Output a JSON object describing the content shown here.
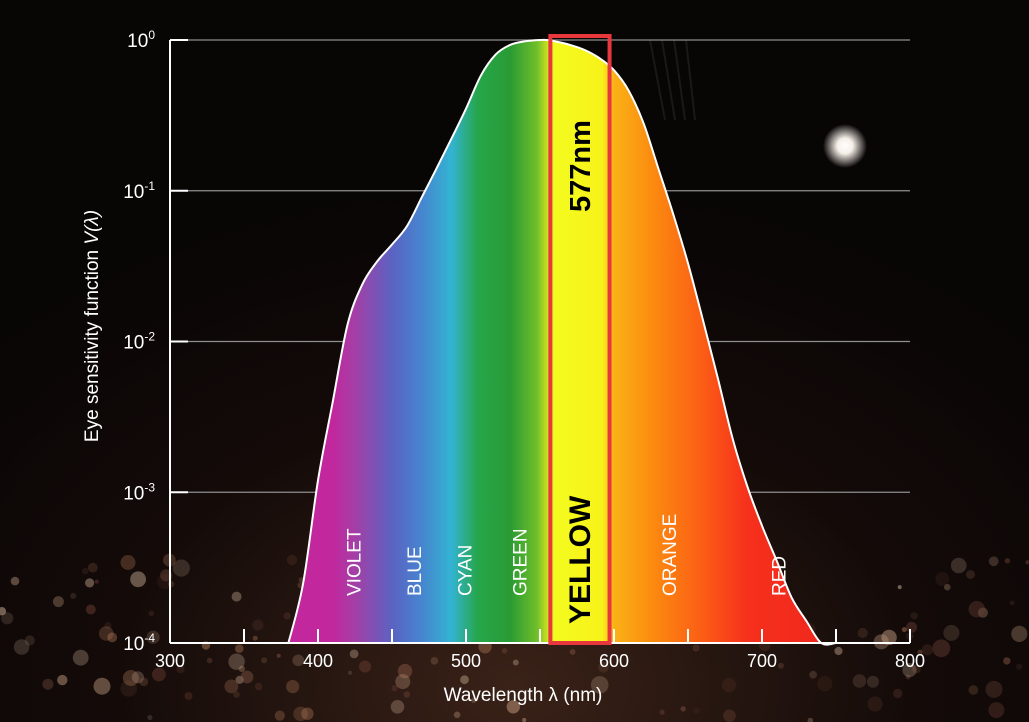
{
  "chart_data": {
    "type": "area",
    "title": "",
    "xlabel": "Wavelength λ (nm)",
    "ylabel_prefix": "Eye sensitivity function ",
    "ylabel_symbol": "V(λ)",
    "xlim": [
      300,
      800
    ],
    "ylim_log10": [
      -4,
      0
    ],
    "yscale": "log",
    "grid": true,
    "x_ticks": [
      "300",
      "400",
      "500",
      "600",
      "700",
      "800"
    ],
    "x_tick_values": [
      300,
      400,
      500,
      600,
      700,
      800
    ],
    "x_minor_ticks": [
      350,
      450,
      550,
      650,
      750
    ],
    "y_ticks": [
      {
        "base": "10",
        "exp": "0",
        "value": 1
      },
      {
        "base": "10",
        "exp": "-1",
        "value": 0.1
      },
      {
        "base": "10",
        "exp": "-2",
        "value": 0.01
      },
      {
        "base": "10",
        "exp": "-3",
        "value": 0.001
      },
      {
        "base": "10",
        "exp": "-4",
        "value": 0.0001
      }
    ],
    "series": [
      {
        "x": [
          380,
          390,
          400,
          410,
          420,
          430,
          440,
          450,
          460,
          470,
          480,
          490,
          500,
          510,
          520,
          530,
          540,
          550,
          555,
          560,
          570,
          580,
          590,
          600,
          610,
          620,
          630,
          640,
          650,
          660,
          670,
          680,
          690,
          700,
          710,
          720,
          730,
          740,
          750
        ],
        "y": [
          0.0001,
          0.00025,
          0.0012,
          0.004,
          0.013,
          0.024,
          0.034,
          0.044,
          0.058,
          0.09,
          0.14,
          0.22,
          0.35,
          0.58,
          0.8,
          0.93,
          0.98,
          1.0,
          1.0,
          0.98,
          0.93,
          0.86,
          0.76,
          0.63,
          0.46,
          0.28,
          0.14,
          0.07,
          0.033,
          0.014,
          0.0058,
          0.0023,
          0.0011,
          0.0006,
          0.00035,
          0.0002,
          0.00014,
          0.0001,
          0.0001
        ]
      }
    ],
    "bands": [
      {
        "label": "VIOLET",
        "center": 424
      },
      {
        "label": "BLUE",
        "center": 465
      },
      {
        "label": "CYAN",
        "center": 499
      },
      {
        "label": "GREEN",
        "center": 536
      },
      {
        "label": "ORANGE",
        "center": 637
      },
      {
        "label": "RED",
        "center": 711
      }
    ],
    "highlight": {
      "label": "YELLOW",
      "annotation": "577nm",
      "range": [
        557,
        597
      ],
      "color": "#e8383d"
    },
    "gradient_stops": [
      {
        "wl": 410,
        "color": "#c2279d"
      },
      {
        "wl": 425,
        "color": "#a43fa6"
      },
      {
        "wl": 450,
        "color": "#5b62c2"
      },
      {
        "wl": 470,
        "color": "#4785cf"
      },
      {
        "wl": 490,
        "color": "#33b3d3"
      },
      {
        "wl": 508,
        "color": "#26a64a"
      },
      {
        "wl": 530,
        "color": "#2a9b34"
      },
      {
        "wl": 548,
        "color": "#6fbf2a"
      },
      {
        "wl": 556,
        "color": "#d6e51f"
      },
      {
        "wl": 560,
        "color": "#f4fb1e"
      },
      {
        "wl": 592,
        "color": "#f7f21a"
      },
      {
        "wl": 600,
        "color": "#fbb217"
      },
      {
        "wl": 625,
        "color": "#fb8c10"
      },
      {
        "wl": 660,
        "color": "#fb5d15"
      },
      {
        "wl": 690,
        "color": "#f6301c"
      },
      {
        "wl": 750,
        "color": "#ef271e"
      }
    ]
  }
}
